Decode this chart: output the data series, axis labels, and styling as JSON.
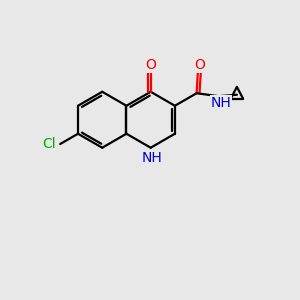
{
  "bg_color": "#e8e8e8",
  "bond_color": "#000000",
  "atom_colors": {
    "O": "#ff0000",
    "N": "#0000cc",
    "Cl": "#00aa00",
    "C": "#000000"
  },
  "ring_R": 0.95,
  "lw": 1.6,
  "fs": 10
}
